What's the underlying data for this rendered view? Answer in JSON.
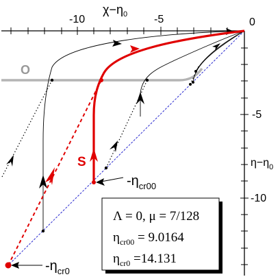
{
  "axes": {
    "x_title": "χ−η",
    "x_title_sub": "0",
    "y_title": "η−η",
    "y_title_sub": "0",
    "x_tick_labels": [
      "-10",
      "-5",
      "0"
    ],
    "y_tick_labels": [
      "-5",
      "-10"
    ]
  },
  "curve_labels": {
    "o_label": "O",
    "s_label": "S"
  },
  "annotations": {
    "eta_cr00_prefix": "-η",
    "eta_cr00_sub": "cr00",
    "eta_cr0_prefix": "-η",
    "eta_cr0_sub": "cr0"
  },
  "legend_box": {
    "line1": "Λ = 0,  μ = 7/128",
    "line2_prefix": "η",
    "line2_sub": "cr00",
    "line2_value": " = 9.0164",
    "line3_prefix": "η",
    "line3_sub": "cr0",
    "line3_value": " =14.131"
  },
  "colors": {
    "separatrix": "#e00000",
    "o_curve": "#b4b4b4",
    "diagonal": "#2a2ad0",
    "trajectories": "#000000"
  }
}
